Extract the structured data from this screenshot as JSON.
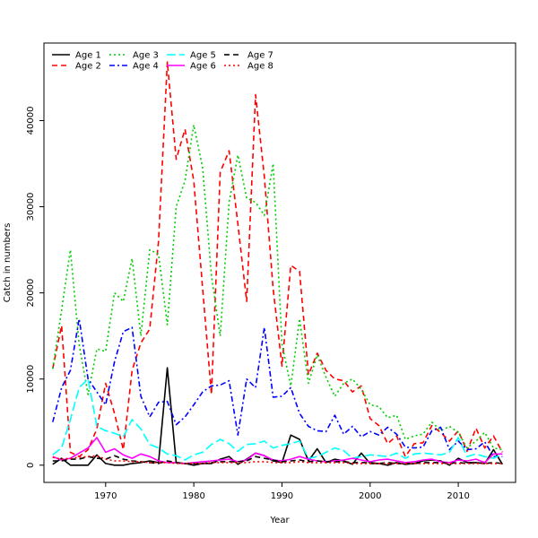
{
  "chart_data": {
    "type": "line",
    "title": "",
    "xlabel": "Year",
    "ylabel": "Catch in numbers",
    "xlim": [
      1963,
      2016.5
    ],
    "ylim": [
      -2000,
      49000
    ],
    "xticks": [
      "1970",
      "1980",
      "1990",
      "2000",
      "2010"
    ],
    "yticks": [
      "0",
      "10000",
      "20000",
      "30000",
      "40000"
    ],
    "legend_position": "top-left",
    "x": [
      1964,
      1965,
      1966,
      1967,
      1968,
      1969,
      1970,
      1971,
      1972,
      1973,
      1974,
      1975,
      1976,
      1977,
      1978,
      1979,
      1980,
      1981,
      1982,
      1983,
      1984,
      1985,
      1986,
      1987,
      1988,
      1989,
      1990,
      1991,
      1992,
      1993,
      1994,
      1995,
      1996,
      1997,
      1998,
      1999,
      2000,
      2001,
      2002,
      2003,
      2004,
      2005,
      2006,
      2007,
      2008,
      2009,
      2010,
      2011,
      2012,
      2013,
      2014,
      2015
    ],
    "series": [
      {
        "name": "Age 1",
        "color": "#000000",
        "dash": "solid",
        "values": [
          100,
          800,
          0,
          0,
          0,
          1200,
          200,
          0,
          0,
          200,
          300,
          500,
          300,
          11300,
          300,
          200,
          0,
          200,
          200,
          700,
          1000,
          100,
          700,
          1400,
          1100,
          500,
          300,
          3500,
          3000,
          500,
          1900,
          300,
          700,
          500,
          100,
          1400,
          200,
          200,
          0,
          300,
          100,
          200,
          500,
          600,
          500,
          0,
          800,
          300,
          300,
          200,
          1800,
          100
        ]
      },
      {
        "name": "Age 2",
        "color": "#ff0000",
        "dash": "6,4",
        "values": [
          11200,
          16200,
          1500,
          1000,
          1800,
          4200,
          9500,
          6000,
          1800,
          11000,
          14200,
          15800,
          26000,
          46800,
          35500,
          39000,
          33000,
          20500,
          8200,
          34000,
          36500,
          28000,
          19000,
          43000,
          33500,
          20500,
          11500,
          23200,
          22500,
          10500,
          13000,
          11000,
          10000,
          9800,
          8500,
          9200,
          5400,
          4600,
          2500,
          3400,
          1000,
          2500,
          2600,
          4600,
          3800,
          2800,
          4000,
          1600,
          4300,
          2000,
          3400,
          1500
        ]
      },
      {
        "name": "Age 3",
        "color": "#00cc00",
        "dash": "2,3",
        "values": [
          11200,
          18000,
          25000,
          14000,
          8200,
          13500,
          13200,
          20000,
          19000,
          24000,
          15000,
          25000,
          24500,
          16300,
          30000,
          33000,
          39500,
          34500,
          22000,
          15000,
          30500,
          36000,
          31000,
          30500,
          29000,
          35000,
          14000,
          9200,
          17000,
          9500,
          12800,
          10200,
          8000,
          9500,
          10000,
          8800,
          7000,
          6800,
          5500,
          5800,
          3000,
          3400,
          3600,
          5000,
          4000,
          4500,
          3800,
          2000,
          2800,
          3800,
          2000,
          1800
        ]
      },
      {
        "name": "Age 4",
        "color": "#0000ff",
        "dash": "6,3,2,3",
        "values": [
          5000,
          9000,
          11000,
          17000,
          10000,
          8500,
          7000,
          12000,
          15500,
          16000,
          8000,
          5600,
          7300,
          7400,
          4700,
          5600,
          7000,
          8500,
          9200,
          9300,
          9800,
          3500,
          10000,
          9000,
          16000,
          7900,
          8000,
          9000,
          6000,
          4500,
          4000,
          3900,
          5800,
          3600,
          4500,
          3300,
          3900,
          3500,
          4400,
          3600,
          2100,
          2000,
          2100,
          4000,
          4400,
          1800,
          2800,
          1800,
          1900,
          2700,
          1000,
          1000
        ]
      },
      {
        "name": "Age 5",
        "color": "#00ffff",
        "dash": "10,4",
        "values": [
          1200,
          2000,
          5300,
          9000,
          10000,
          4500,
          4000,
          3700,
          3300,
          5300,
          4200,
          2400,
          2000,
          1300,
          1100,
          600,
          1200,
          1500,
          2400,
          3000,
          2500,
          1600,
          2400,
          2500,
          2800,
          2000,
          2300,
          2500,
          2800,
          800,
          1000,
          1500,
          2000,
          1700,
          800,
          1000,
          1200,
          1100,
          1000,
          1400,
          800,
          1300,
          1400,
          1300,
          1200,
          1500,
          3200,
          1000,
          1300,
          1000,
          800,
          1300
        ]
      },
      {
        "name": "Age 6",
        "color": "#ff00ff",
        "dash": "solid",
        "values": [
          1000,
          600,
          800,
          1400,
          2000,
          3200,
          1500,
          1900,
          1200,
          800,
          1300,
          1000,
          500,
          300,
          300,
          200,
          300,
          400,
          500,
          600,
          700,
          400,
          600,
          1400,
          1100,
          600,
          500,
          700,
          1000,
          700,
          500,
          400,
          500,
          600,
          800,
          600,
          400,
          600,
          700,
          500,
          300,
          400,
          600,
          700,
          400,
          300,
          600,
          500,
          700,
          300,
          1300,
          1300
        ]
      },
      {
        "name": "Age 7",
        "color": "#000000",
        "dash": "6,4",
        "values": [
          500,
          500,
          700,
          700,
          1000,
          800,
          700,
          1100,
          700,
          500,
          400,
          300,
          200,
          500,
          300,
          200,
          200,
          200,
          300,
          400,
          400,
          400,
          500,
          1000,
          800,
          600,
          400,
          500,
          600,
          400,
          500,
          400,
          400,
          400,
          300,
          300,
          300,
          200,
          300,
          200,
          200,
          200,
          300,
          300,
          300,
          200,
          300,
          200,
          300,
          200,
          300,
          200
        ]
      },
      {
        "name": "Age 8",
        "color": "#ff0000",
        "dash": "2,3",
        "values": [
          900,
          700,
          800,
          900,
          1000,
          1100,
          700,
          500,
          500,
          400,
          400,
          300,
          300,
          300,
          200,
          200,
          200,
          200,
          300,
          300,
          300,
          300,
          300,
          400,
          400,
          300,
          300,
          300,
          400,
          300,
          300,
          300,
          300,
          300,
          200,
          200,
          200,
          200,
          200,
          200,
          200,
          200,
          200,
          200,
          200,
          200,
          200,
          200,
          200,
          200,
          200,
          200
        ]
      }
    ]
  }
}
